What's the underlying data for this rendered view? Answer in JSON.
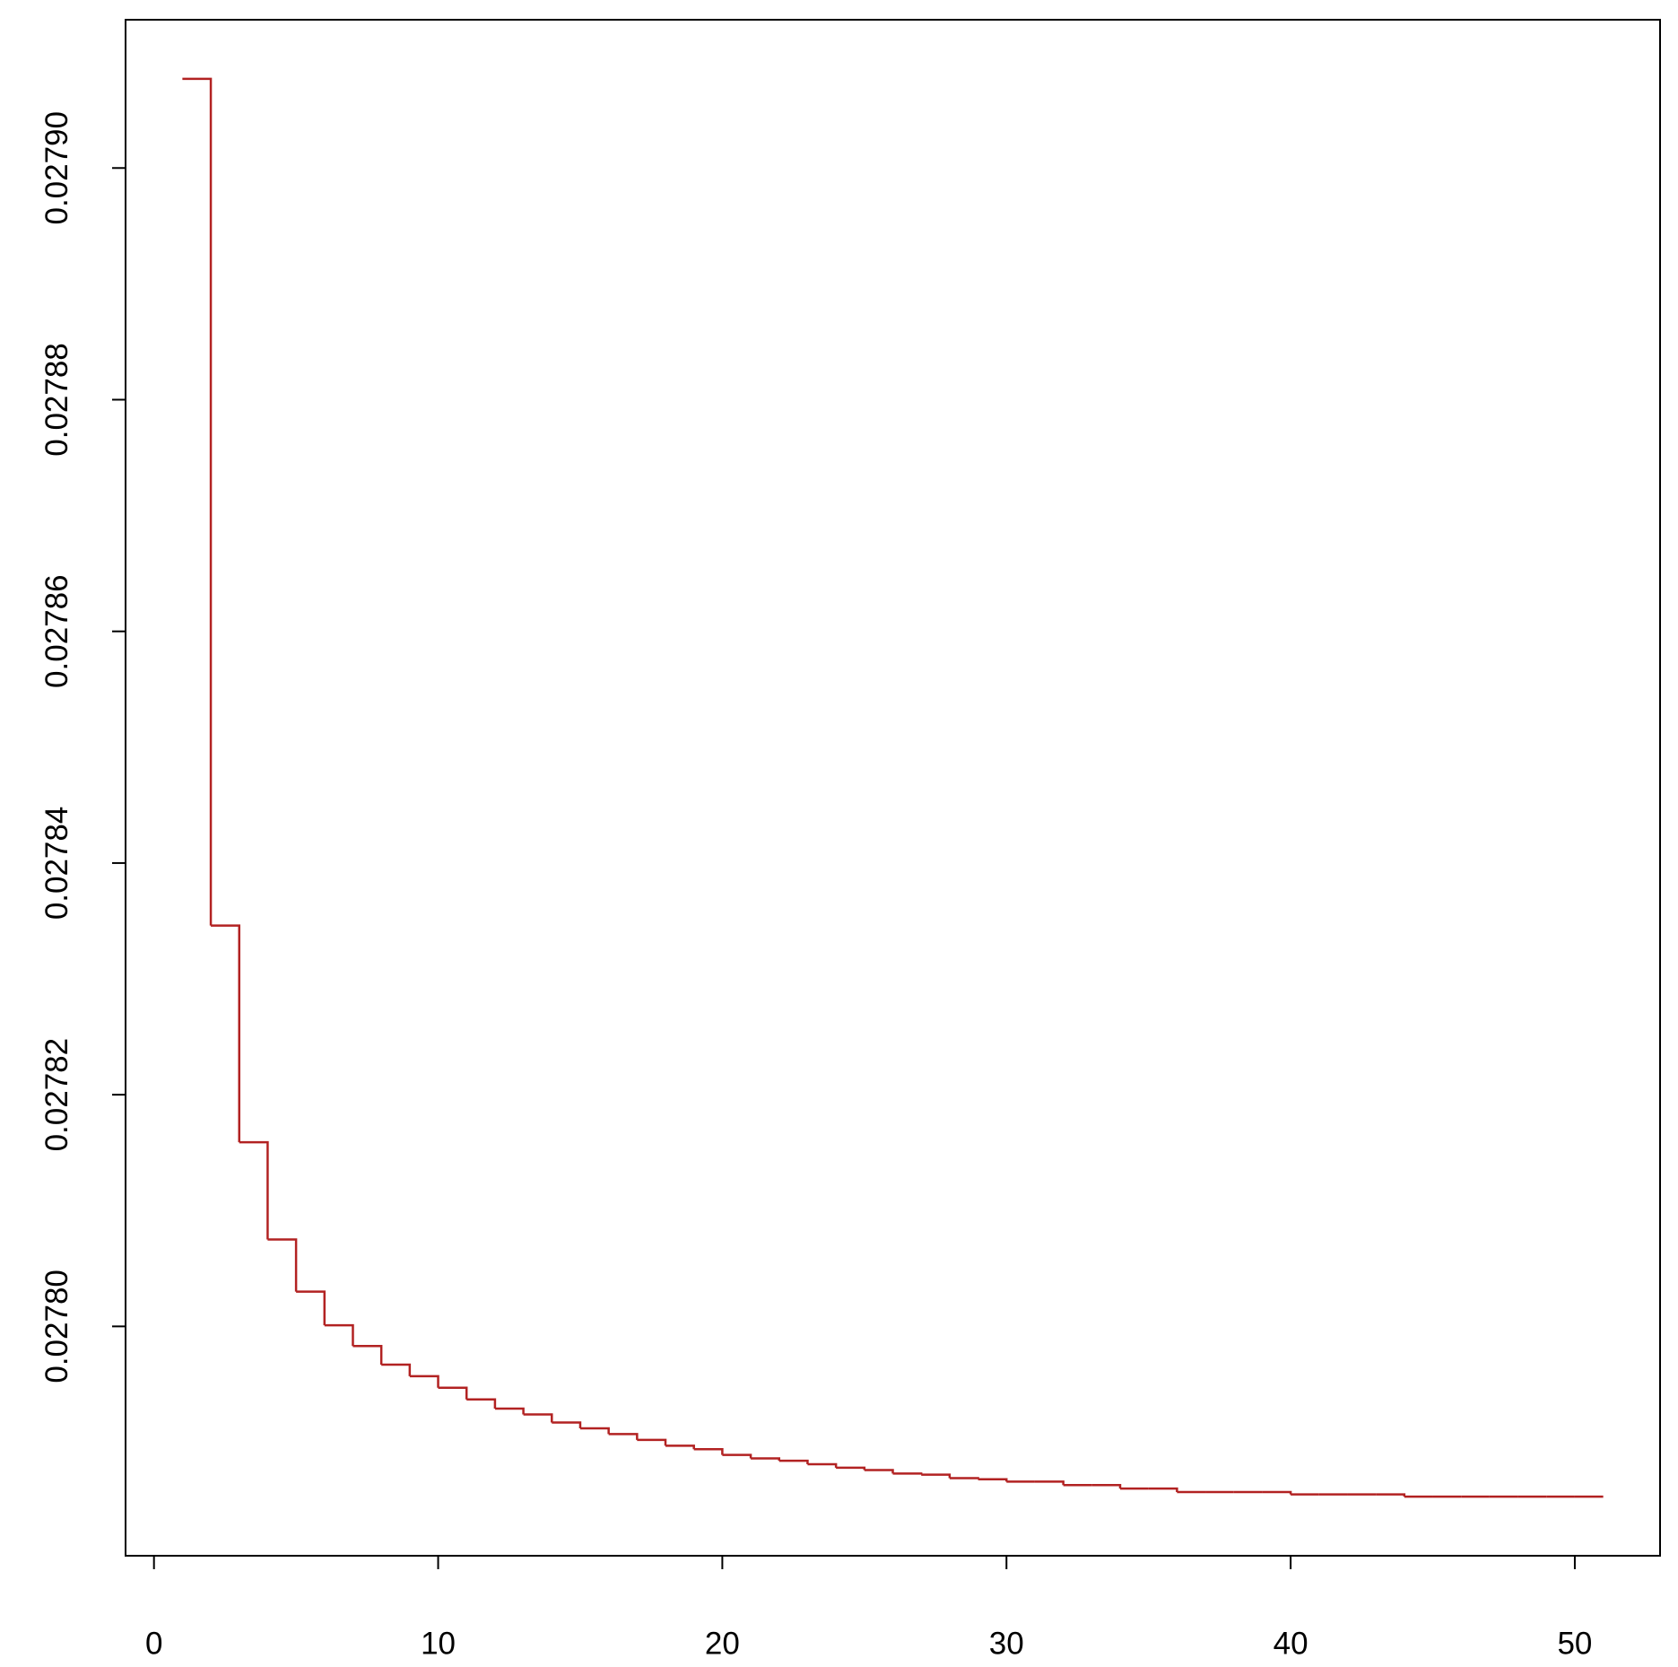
{
  "chart_data": {
    "type": "step",
    "x": [
      1,
      2,
      3,
      4,
      5,
      6,
      7,
      8,
      9,
      10,
      11,
      12,
      13,
      14,
      15,
      16,
      17,
      18,
      19,
      20,
      21,
      22,
      23,
      24,
      25,
      26,
      27,
      28,
      29,
      30,
      31,
      32,
      33,
      34,
      35,
      36,
      37,
      38,
      39,
      40,
      41,
      42,
      43,
      44,
      45,
      46,
      47,
      48,
      49,
      50,
      51
    ],
    "series": [
      {
        "color": "#b22222",
        "values": [
          0.0279077,
          0.0278346,
          0.0278159,
          0.0278075,
          0.027803,
          0.0278001,
          0.0277983,
          0.0277967,
          0.0277957,
          0.0277947,
          0.0277937,
          0.0277929,
          0.0277924,
          0.0277917,
          0.0277912,
          0.0277907,
          0.0277902,
          0.0277897,
          0.0277894,
          0.0277889,
          0.0277886,
          0.0277884,
          0.0277881,
          0.0277878,
          0.0277876,
          0.0277873,
          0.0277872,
          0.0277869,
          0.0277868,
          0.0277866,
          0.0277866,
          0.0277863,
          0.0277863,
          0.027786,
          0.027786,
          0.0277857,
          0.0277857,
          0.0277857,
          0.0277857,
          0.0277855,
          0.0277855,
          0.0277855,
          0.0277855,
          0.0277853,
          0.0277853,
          0.0277853,
          0.0277853,
          0.0277853,
          0.0277853,
          0.0277853,
          0.0277853
        ]
      }
    ],
    "xlim": [
      -1,
      53
    ],
    "xticks": [
      0,
      10,
      20,
      30,
      40,
      50
    ],
    "ylim": [
      0.0277802,
      0.0279128
    ],
    "yticks": [
      {
        "value": 0.0278,
        "label": "0.02780"
      },
      0.02782,
      0.02784,
      0.02786,
      0.02788,
      {
        "value": 0.0279,
        "label": "0.02790"
      }
    ]
  }
}
